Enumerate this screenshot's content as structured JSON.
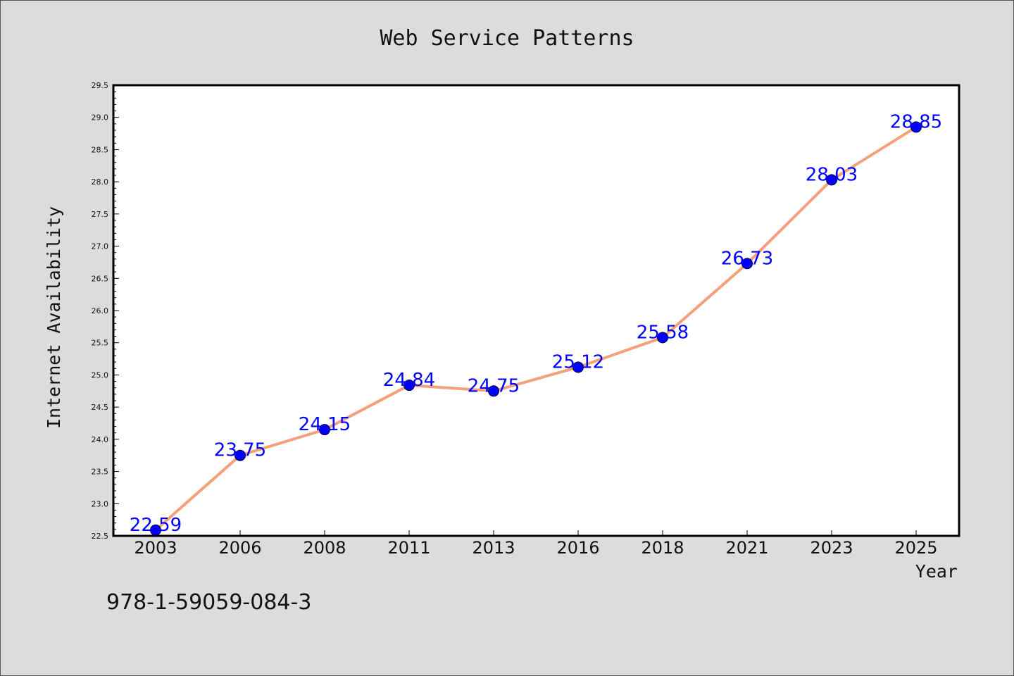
{
  "chart_data": {
    "type": "line",
    "title": "Web Service Patterns",
    "xlabel": "Year",
    "ylabel": "Internet Availability",
    "categories": [
      "2003",
      "2006",
      "2008",
      "2011",
      "2013",
      "2016",
      "2018",
      "2021",
      "2023",
      "2025"
    ],
    "values": [
      22.59,
      23.75,
      24.15,
      24.84,
      24.75,
      25.12,
      25.58,
      26.73,
      28.03,
      28.85
    ],
    "data_labels": [
      "22.59",
      "23.75",
      "24.15",
      "24.84",
      "24.75",
      "25.12",
      "25.58",
      "26.73",
      "28.03",
      "28.85"
    ],
    "yticks": [
      "22.5",
      "23.0",
      "23.5",
      "24.0",
      "24.5",
      "25.0",
      "25.5",
      "26.0",
      "26.5",
      "27.0",
      "27.5",
      "28.0",
      "28.5",
      "29.0",
      "29.5"
    ],
    "ylim": [
      22.5,
      29.5
    ],
    "grid": false,
    "line_color": "#f4a07a",
    "marker_color": "#0000ff",
    "label_color": "#0000ff"
  },
  "footer_text": "978-1-59059-084-3"
}
